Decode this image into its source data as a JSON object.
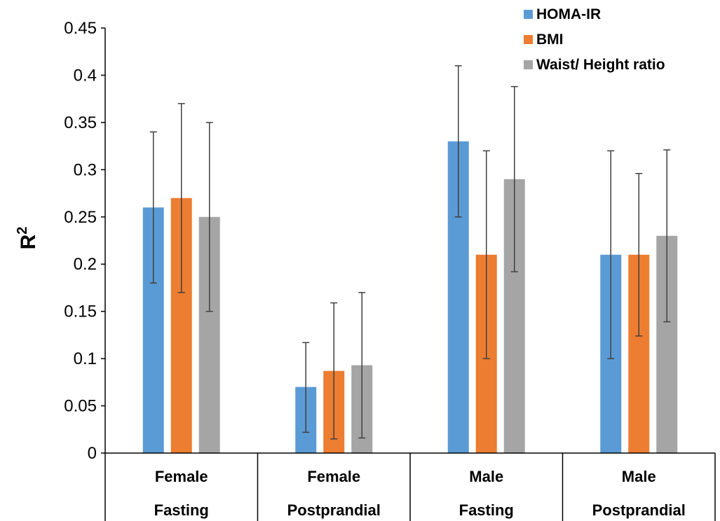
{
  "chart_data": {
    "type": "bar",
    "ylabel": "R",
    "ylabel_superscript": "2",
    "ylim": [
      0,
      0.45
    ],
    "yticks": [
      "0",
      "0.05",
      "0.1",
      "0.15",
      "0.2",
      "0.25",
      "0.3",
      "0.35",
      "0.4",
      "0.45"
    ],
    "categories": [
      {
        "line1": "Female",
        "line2": "Fasting"
      },
      {
        "line1": "Female",
        "line2": "Postprandial"
      },
      {
        "line1": "Male",
        "line2": "Fasting"
      },
      {
        "line1": "Male",
        "line2": "Postprandial"
      }
    ],
    "series": [
      {
        "name": "HOMA-IR",
        "color": "#5B9BD5",
        "values": [
          0.26,
          0.07,
          0.33,
          0.21
        ],
        "error_low": [
          0.18,
          0.022,
          0.25,
          0.1
        ],
        "error_high": [
          0.34,
          0.117,
          0.41,
          0.32
        ]
      },
      {
        "name": "BMI",
        "color": "#ED7D31",
        "values": [
          0.27,
          0.087,
          0.21,
          0.21
        ],
        "error_low": [
          0.17,
          0.015,
          0.1,
          0.124
        ],
        "error_high": [
          0.37,
          0.159,
          0.32,
          0.296
        ]
      },
      {
        "name": "Waist/ Height ratio",
        "color": "#A5A5A5",
        "values": [
          0.25,
          0.093,
          0.29,
          0.23
        ],
        "error_low": [
          0.15,
          0.016,
          0.192,
          0.139
        ],
        "error_high": [
          0.35,
          0.17,
          0.388,
          0.321
        ]
      }
    ],
    "legend_position": "top-right",
    "grid": false
  }
}
